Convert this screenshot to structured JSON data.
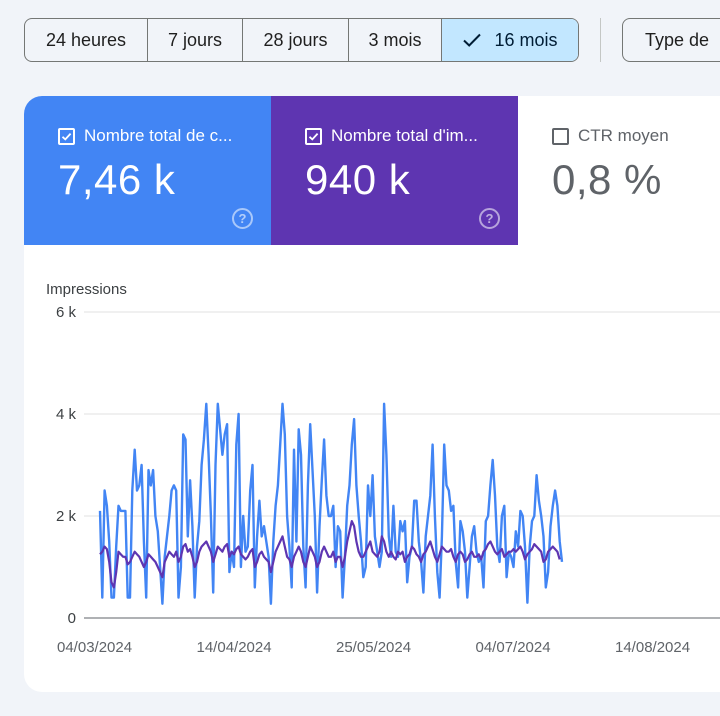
{
  "date_range": {
    "options": [
      {
        "label": "24 heures",
        "selected": false
      },
      {
        "label": "7 jours",
        "selected": false
      },
      {
        "label": "28 jours",
        "selected": false
      },
      {
        "label": "3 mois",
        "selected": false
      },
      {
        "label": "16 mois",
        "selected": true
      }
    ],
    "type_button_label": "Type de"
  },
  "metrics": [
    {
      "label": "Nombre total de c...",
      "value": "7,46 k",
      "checked": true,
      "color": "#4285f4"
    },
    {
      "label": "Nombre total d'im...",
      "value": "940 k",
      "checked": true,
      "color": "#5e35b1"
    },
    {
      "label": "CTR moyen",
      "value": "0,8 %",
      "checked": false,
      "color": "#ffffff"
    }
  ],
  "chart_data": {
    "type": "line",
    "ylabel": "Impressions",
    "yticks": [
      "0",
      "2 k",
      "4 k",
      "6 k"
    ],
    "ylim": [
      0,
      6000
    ],
    "xticks": [
      "04/03/2024",
      "14/04/2024",
      "25/05/2024",
      "04/07/2024",
      "14/08/2024"
    ],
    "x_start": "2024-03-04",
    "grid": true,
    "series": [
      {
        "color": "#4285f4",
        "axis": "left",
        "values": [
          2100,
          400,
          2500,
          2200,
          1500,
          400,
          400,
          1400,
          2200,
          2100,
          2100,
          2100,
          400,
          400,
          2500,
          3300,
          2500,
          2600,
          3000,
          1500,
          400,
          2900,
          2600,
          2900,
          2000,
          1700,
          1000,
          280,
          1200,
          1600,
          2000,
          2500,
          2600,
          2500,
          400,
          1000,
          3600,
          3500,
          1600,
          2700,
          1800,
          400,
          1400,
          1900,
          3000,
          3500,
          4200,
          3200,
          2000,
          500,
          3000,
          4200,
          3700,
          3200,
          3600,
          3800,
          900,
          1300,
          1000,
          3400,
          4000,
          1000,
          2000,
          1300,
          1400,
          2500,
          3000,
          600,
          1600,
          2300,
          1600,
          1800,
          1500,
          1200,
          280,
          1500,
          2200,
          2600,
          3400,
          4200,
          3600,
          2000,
          1400,
          600,
          3300,
          1500,
          3700,
          3200,
          1400,
          600,
          2600,
          3800,
          2900,
          2000,
          500,
          1800,
          2700,
          3500,
          2400,
          2000,
          2000,
          2200,
          1000,
          1800,
          1700,
          400,
          1200,
          2200,
          2600,
          3400,
          3900,
          2600,
          2000,
          1500,
          800,
          1000,
          2600,
          2000,
          2800,
          1600,
          1300,
          1000,
          1300,
          4200,
          3200,
          1600,
          1200,
          2200,
          1300,
          1200,
          1900,
          1700,
          1900,
          700,
          1200,
          1400,
          2300,
          2300,
          1500,
          1100,
          500,
          1600,
          2000,
          2400,
          3400,
          2000,
          900,
          400,
          1600,
          3400,
          2600,
          2500,
          2100,
          2200,
          1100,
          600,
          1900,
          1700,
          1300,
          400,
          1000,
          1600,
          1800,
          1300,
          1100,
          1200,
          600,
          1900,
          2000,
          2600,
          3100,
          2400,
          1400,
          1100,
          2000,
          2200,
          800,
          1300,
          1200,
          1000,
          1700,
          1400,
          2100,
          2000,
          1400,
          300,
          1400,
          1900,
          2000,
          2800,
          2300,
          2000,
          1600,
          600,
          900,
          1800,
          2200,
          2500,
          2200,
          1500,
          1100
        ]
      },
      {
        "color": "#5e35b1",
        "axis": "right",
        "values": [
          1250,
          1300,
          1400,
          1350,
          1100,
          700,
          600,
          900,
          1300,
          1250,
          1200,
          1200,
          1050,
          1100,
          1200,
          1300,
          1250,
          1200,
          1100,
          1000,
          1100,
          1250,
          1200,
          1150,
          1100,
          1000,
          900,
          800,
          1100,
          1200,
          1300,
          1250,
          1200,
          1300,
          1100,
          1200,
          1400,
          1450,
          1300,
          1350,
          1200,
          1000,
          1100,
          1300,
          1400,
          1450,
          1500,
          1400,
          1300,
          1100,
          1250,
          1400,
          1350,
          1300,
          1400,
          1450,
          1200,
          1300,
          1250,
          1350,
          1400,
          1250,
          1200,
          1150,
          1200,
          1300,
          1350,
          1000,
          1100,
          1250,
          1300,
          1200,
          1150,
          1100,
          900,
          1100,
          1300,
          1400,
          1500,
          1600,
          1400,
          1200,
          1150,
          1000,
          1200,
          1300,
          1400,
          1300,
          1100,
          1000,
          1200,
          1400,
          1300,
          1200,
          1000,
          1100,
          1300,
          1400,
          1300,
          1200,
          1200,
          1300,
          1100,
          1200,
          1200,
          1000,
          1200,
          1500,
          1700,
          1900,
          1800,
          1500,
          1300,
          1200,
          1200,
          1300,
          1400,
          1500,
          1300,
          1250,
          1200,
          1300,
          1600,
          1500,
          1300,
          1200,
          1300,
          1200,
          1150,
          1300,
          1250,
          1300,
          1100,
          1200,
          1250,
          1400,
          1350,
          1250,
          1200,
          1100,
          1250,
          1300,
          1400,
          1500,
          1350,
          1200,
          1100,
          1250,
          1400,
          1350,
          1300,
          1300,
          1350,
          1200,
          1100,
          1250,
          1300,
          1250,
          1100,
          1150,
          1250,
          1300,
          1200,
          1200,
          1250,
          1150,
          1300,
          1350,
          1450,
          1500,
          1400,
          1300,
          1250,
          1300,
          1350,
          1200,
          1250,
          1300,
          1300,
          1350,
          1300,
          1350,
          1400,
          1300,
          1150,
          1250,
          1300,
          1350,
          1450,
          1400,
          1350,
          1300,
          1100,
          1150,
          1300,
          1350,
          1400,
          1350,
          1300,
          1150
        ]
      }
    ]
  }
}
